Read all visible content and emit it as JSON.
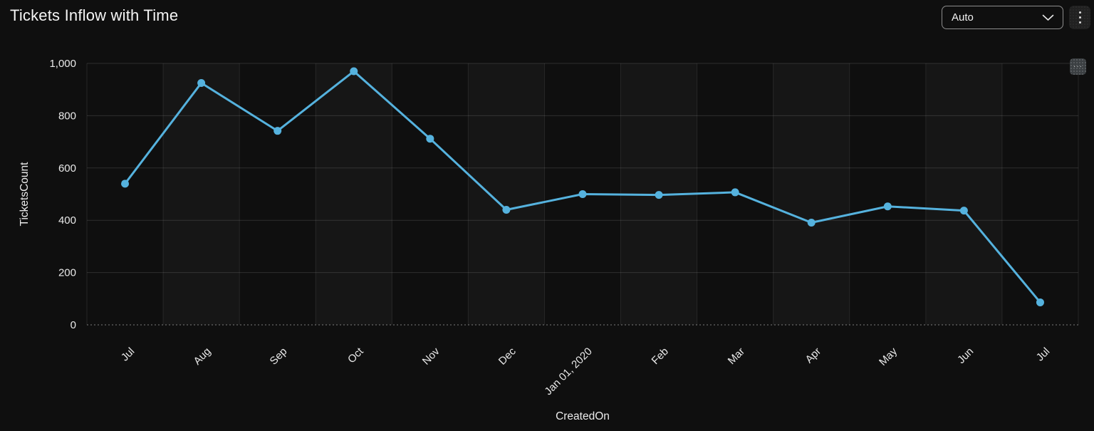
{
  "header": {
    "title": "Tickets Inflow with Time",
    "interval_dropdown": {
      "value": "Auto"
    }
  },
  "overlay": {
    "mini_menu_label": "···"
  },
  "colors": {
    "line": "#55b2de",
    "background": "#0f0f0f",
    "gridline": "rgba(255,255,255,0.13)",
    "band": "rgba(255,255,255,0.03)",
    "tick_text": "#e9e9e9"
  },
  "chart_data": {
    "type": "line",
    "title": "Tickets Inflow with Time",
    "xlabel": "CreatedOn",
    "ylabel": "TicketsCount",
    "categories": [
      "Jul",
      "Aug",
      "Sep",
      "Oct",
      "Nov",
      "Dec",
      "Jan 01, 2020",
      "Feb",
      "Mar",
      "Apr",
      "May",
      "Jun",
      "Jul"
    ],
    "values": [
      540,
      925,
      742,
      970,
      712,
      440,
      500,
      497,
      507,
      391,
      453,
      437,
      86
    ],
    "ylim": [
      0,
      1000
    ],
    "yticks": [
      0,
      200,
      400,
      600,
      800,
      1000
    ],
    "ytick_labels": [
      "0",
      "200",
      "400",
      "600",
      "800",
      "1,000"
    ],
    "grid": true,
    "legend": "none",
    "marker": "circle"
  }
}
